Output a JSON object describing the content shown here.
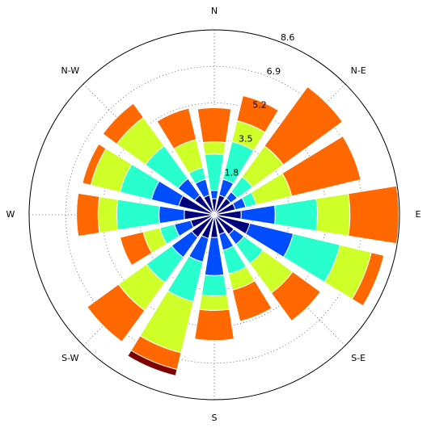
{
  "chart_data": {
    "type": "windrose",
    "categories": [
      "N",
      null,
      "N-E",
      null,
      "E",
      null,
      "S-E",
      null,
      "S",
      null,
      "S-W",
      null,
      "W",
      null,
      "N-W",
      null
    ],
    "series": [
      {
        "color": "#00007f",
        "values": [
          0.75,
          0.94,
          0.94,
          1.0,
          1.25,
          1.7,
          1.13,
          0.94,
          1.06,
          1.13,
          1.3,
          1.13,
          1.4,
          1.7,
          1.13,
          0.94
        ]
      },
      {
        "color": "#004cff",
        "values": [
          0.38,
          0.76,
          0.38,
          0.5,
          1.58,
          2.07,
          0.57,
          0.76,
          1.77,
          1.13,
          1.15,
          0.77,
          1.17,
          1.3,
          0.95,
          0.76
        ]
      },
      {
        "color": "#29ffce",
        "values": [
          1.7,
          1.8,
          0.87,
          0.5,
          1.96,
          2.23,
          1.1,
          1.13,
          0.94,
          1.89,
          1.45,
          0.7,
          1.96,
          1.5,
          1.88,
          0.56
        ]
      },
      {
        "color": "#ceff29",
        "values": [
          0.57,
          1.0,
          1.77,
          1.7,
          1.51,
          1.5,
          1.7,
          0.77,
          0.68,
          2.45,
          1.6,
          0.8,
          0.87,
          1.4,
          1.64,
          1.34
        ]
      },
      {
        "color": "#ff6800",
        "values": [
          1.58,
          1.2,
          3.4,
          3.3,
          2.27,
          0.6,
          1.6,
          1.5,
          1.4,
          0.8,
          1.8,
          1.1,
          1.0,
          0.4,
          0.8,
          1.5
        ]
      },
      {
        "color": "#7f0000",
        "values": [
          0,
          0,
          0,
          0,
          0,
          0,
          0,
          0,
          0,
          0.3,
          0,
          0,
          0,
          0,
          0,
          0
        ]
      }
    ],
    "ylim": [
      0,
      8.6
    ],
    "yticks": [
      1.8,
      3.5,
      5.2,
      6.9,
      8.6
    ],
    "grid": true
  }
}
